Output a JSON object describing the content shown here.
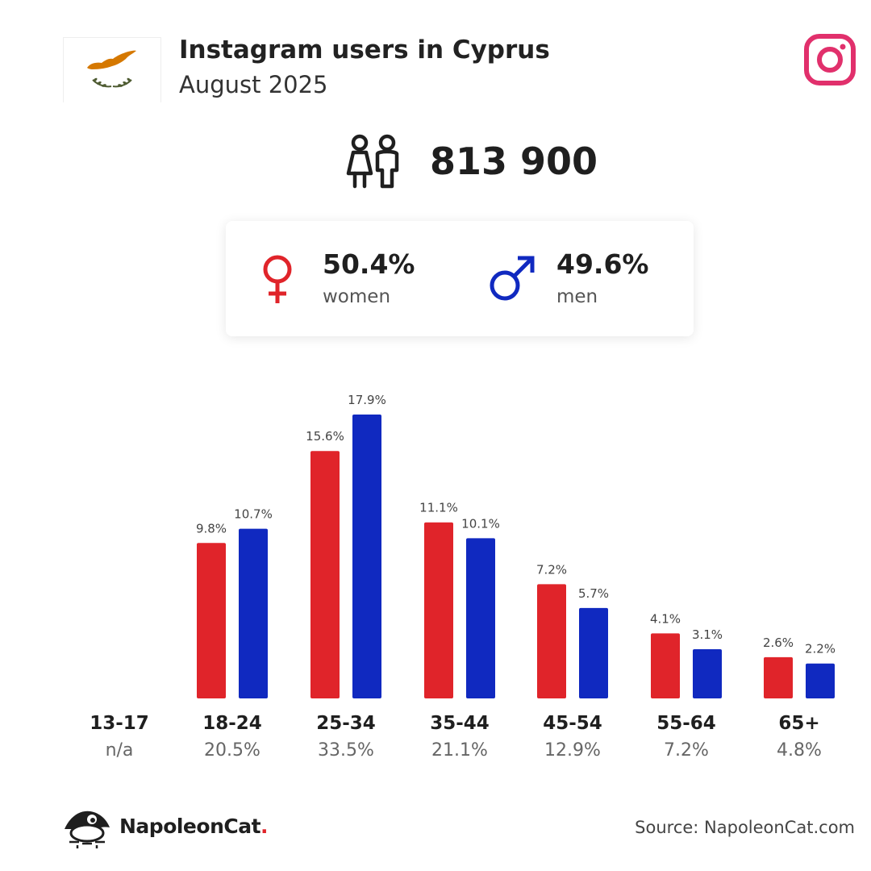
{
  "header": {
    "title": "Instagram users in Cyprus",
    "subtitle": "August 2025"
  },
  "total": {
    "value": "813 900"
  },
  "gender": {
    "women": {
      "percent": "50.4%",
      "label": "women",
      "color": "#e0242a"
    },
    "men": {
      "percent": "49.6%",
      "label": "men",
      "color": "#1029c0"
    }
  },
  "chart_data": {
    "type": "bar",
    "categories": [
      "13-17",
      "18-24",
      "25-34",
      "35-44",
      "45-54",
      "55-64",
      "65+"
    ],
    "category_totals": [
      "n/a",
      "20.5%",
      "33.5%",
      "21.1%",
      "12.9%",
      "7.2%",
      "4.8%"
    ],
    "series": [
      {
        "color": "#e0242a",
        "values": [
          null,
          9.8,
          15.6,
          11.1,
          7.2,
          4.1,
          2.6
        ],
        "labels": [
          "",
          "9.8%",
          "15.6%",
          "11.1%",
          "7.2%",
          "4.1%",
          "2.6%"
        ]
      },
      {
        "color": "#1029c0",
        "values": [
          null,
          10.7,
          17.9,
          10.1,
          5.7,
          3.1,
          2.2
        ],
        "labels": [
          "",
          "10.7%",
          "17.9%",
          "10.1%",
          "5.7%",
          "3.1%",
          "2.2%"
        ]
      }
    ],
    "ylim": [
      0,
      17.9
    ],
    "grid": false
  },
  "footer": {
    "brand": "NapoleonCat",
    "brand_dot": ".",
    "source": "Source: NapoleonCat.com"
  },
  "icons": {
    "flag": "cyprus-flag-icon",
    "instagram": "instagram-icon",
    "people": "people-icon",
    "female": "female-symbol-icon",
    "male": "male-symbol-icon",
    "logo": "napoleoncat-logo-icon"
  }
}
